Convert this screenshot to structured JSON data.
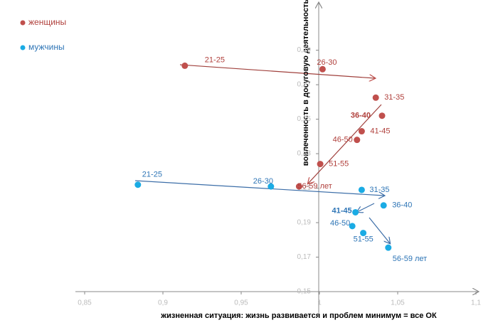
{
  "chart_data": {
    "type": "scatter",
    "xlabel": "жизненная ситуация: жизнь развивается и проблем минимум = все ОК",
    "ylabel": "вовлеченность в досуговую деятельность",
    "xlim": [
      0.845,
      1.105
    ],
    "ylim": [
      0.15,
      0.315
    ],
    "xticks": [
      {
        "value": 0.85,
        "label": "0,85"
      },
      {
        "value": 0.9,
        "label": "0,9"
      },
      {
        "value": 0.95,
        "label": "0,95"
      },
      {
        "value": 1,
        "label": "1"
      },
      {
        "value": 1.05,
        "label": "1,05"
      },
      {
        "value": 1.1,
        "label": "1,1"
      }
    ],
    "yticks": [
      {
        "value": 0.15,
        "label": "0,15"
      },
      {
        "value": 0.17,
        "label": "0,17"
      },
      {
        "value": 0.19,
        "label": "0,19"
      },
      {
        "value": 0.21,
        "label": "0,21"
      },
      {
        "value": 0.23,
        "label": "0,23"
      },
      {
        "value": 0.25,
        "label": "0,25"
      },
      {
        "value": 0.27,
        "label": "0,27"
      },
      {
        "value": 0.29,
        "label": "0,29"
      }
    ],
    "legend": "top-left",
    "series": [
      {
        "name": "женщины",
        "color": "#c0504d",
        "labels": [
          "21-25",
          "26-30",
          "31-35",
          "36-40",
          "41-45",
          "46-50",
          "51-55",
          "56-59 лет"
        ],
        "x": [
          0.914,
          1.002,
          1.036,
          1.04,
          1.027,
          1.024,
          1.0005,
          0.987
        ],
        "values": [
          0.281,
          0.279,
          0.2625,
          0.252,
          0.243,
          0.238,
          0.224,
          0.211
        ]
      },
      {
        "name": "мужчины",
        "color": "#1aabe4",
        "labels": [
          "21-25",
          "26-30",
          "31-35",
          "36-40",
          "41-45",
          "46-50",
          "51-55",
          "56-59 лет"
        ],
        "x": [
          0.884,
          0.969,
          1.027,
          1.041,
          1.023,
          1.021,
          1.028,
          1.044
        ],
        "values": [
          0.212,
          0.211,
          0.209,
          0.2,
          0.196,
          0.188,
          0.184,
          0.1755
        ]
      }
    ]
  }
}
